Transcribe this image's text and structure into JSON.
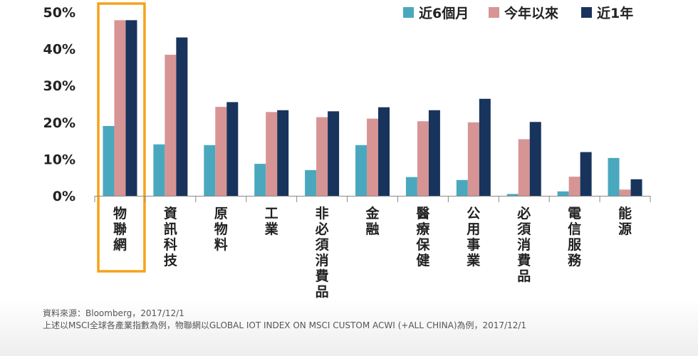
{
  "chart_data": {
    "type": "bar",
    "categories": [
      "物聯網",
      "資訊科技",
      "原物料",
      "工業",
      "非必須消費品",
      "金融",
      "醫療保健",
      "公用事業",
      "必須消費品",
      "電信服務",
      "能源"
    ],
    "series": [
      {
        "name": "近6個月",
        "color": "#4aa8be",
        "values": [
          19.0,
          14.0,
          13.8,
          8.7,
          7.0,
          13.8,
          5.1,
          4.3,
          0.5,
          1.2,
          10.3
        ]
      },
      {
        "name": "今年以來",
        "color": "#d69594",
        "values": [
          47.8,
          38.4,
          24.2,
          22.8,
          21.4,
          21.0,
          20.3,
          20.0,
          15.4,
          5.2,
          1.7
        ]
      },
      {
        "name": "近1年",
        "color": "#18345c",
        "values": [
          47.8,
          43.1,
          25.5,
          23.3,
          23.0,
          24.1,
          23.3,
          26.4,
          20.1,
          11.9,
          4.5
        ]
      }
    ],
    "yticks": [
      "0%",
      "10%",
      "20%",
      "30%",
      "40%",
      "50%"
    ],
    "ylim": [
      0,
      50
    ],
    "highlight": {
      "category_index": 0,
      "color": "#f5a31a"
    },
    "legend_position": "top-right"
  },
  "footnotes": {
    "source": "資料來源：Bloomberg，2017/12/1",
    "note": "上述以MSCI全球各產業指數為例，物聯網以GLOBAL IOT INDEX ON MSCI CUSTOM ACWI (+ALL CHINA)為例，2017/12/1"
  }
}
